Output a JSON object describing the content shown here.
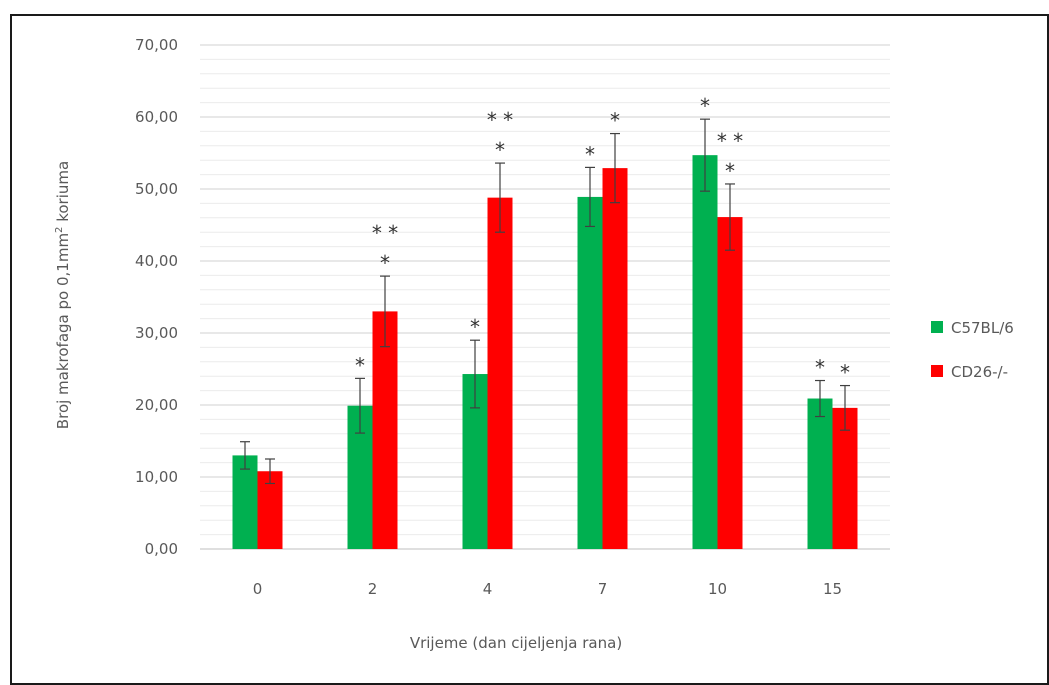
{
  "chart_data": {
    "type": "bar",
    "title": "",
    "xlabel": "Vrijeme (dan cijeljenja rana)",
    "ylabel": {
      "pre": "Broj makrofaga po 0,1mm",
      "sup": "2",
      "post": " koriuma"
    },
    "categories": [
      "0",
      "2",
      "4",
      "7",
      "10",
      "15"
    ],
    "ylim": [
      0,
      70
    ],
    "yticks": [
      "0,00",
      "10,00",
      "20,00",
      "30,00",
      "40,00",
      "50,00",
      "60,00",
      "70,00"
    ],
    "grid": true,
    "legend_position": "right",
    "series": [
      {
        "name": "C57BL/6",
        "color": "#00b050",
        "values": [
          13.0,
          19.9,
          24.3,
          48.9,
          54.7,
          20.9
        ],
        "errors": [
          1.9,
          3.8,
          4.7,
          4.1,
          5.0,
          2.5
        ],
        "annotations": [
          [],
          [
            "*"
          ],
          [
            "*"
          ],
          [
            "*"
          ],
          [
            "*"
          ],
          [
            "*"
          ]
        ]
      },
      {
        "name": "CD26-/-",
        "color": "#ff0000",
        "values": [
          10.8,
          33.0,
          48.8,
          52.9,
          46.1,
          19.6
        ],
        "errors": [
          1.7,
          4.9,
          4.8,
          4.8,
          4.6,
          3.1
        ],
        "annotations": [
          [],
          [
            "* *",
            "*"
          ],
          [
            "* *",
            "*"
          ],
          [
            "*"
          ],
          [
            "* *",
            "*"
          ],
          [
            "*"
          ]
        ]
      }
    ]
  }
}
